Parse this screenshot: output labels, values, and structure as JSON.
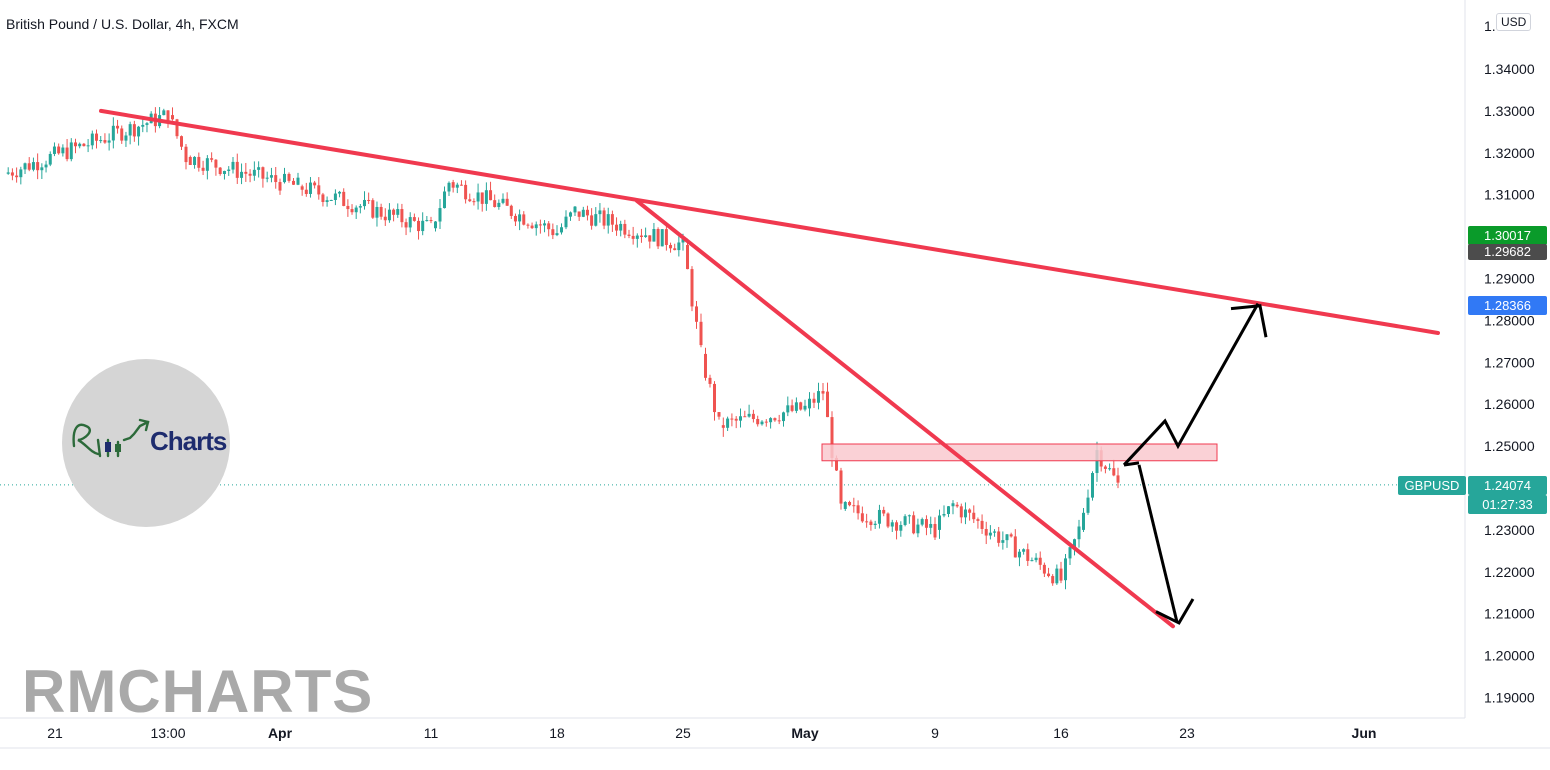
{
  "header": {
    "title": "British Pound / U.S. Dollar, 4h, FXCM",
    "currency_label": "USD"
  },
  "price_tags": {
    "green": "1.30017",
    "dark": "1.29682",
    "blue": "1.28366",
    "symbol": "GBPUSD",
    "last": "1.24074",
    "countdown": "01:27:33"
  },
  "logo": {
    "text": "Charts",
    "mark": "RM"
  },
  "watermark": "RMCHARTS",
  "colors": {
    "trendline": "#f0394f",
    "zone_fill": "#f9c9cf",
    "zone_stroke": "#f0394f",
    "arrow": "#000000",
    "bull": "#26a69a",
    "bear": "#ef5350",
    "last_price_line": "#26a69a"
  },
  "chart_data": {
    "type": "candlestick",
    "title": "British Pound / U.S. Dollar, 4h, FXCM",
    "symbol": "GBPUSD",
    "timeframe": "4h",
    "y_ticks": [
      "1.34000",
      "1.33000",
      "1.32000",
      "1.31000",
      "1.29000",
      "1.28000",
      "1.27000",
      "1.26000",
      "1.25000",
      "1.23000",
      "1.22000",
      "1.21000",
      "1.20000",
      "1.19000"
    ],
    "x_ticks": [
      "21",
      "13:00",
      "Apr",
      "11",
      "18",
      "25",
      "May",
      "9",
      "16",
      "23",
      "Jun"
    ],
    "ylim": [
      1.185,
      1.355
    ],
    "last_price": 1.24074,
    "price_path": [
      {
        "t": "21",
        "p": 1.315
      },
      {
        "t": "13:00",
        "p": 1.329
      },
      {
        "t": "13:00+",
        "p": 1.319
      },
      {
        "t": "Apr",
        "p": 1.313
      },
      {
        "t": "Apr+",
        "p": 1.312
      },
      {
        "t": "11",
        "p": 1.302
      },
      {
        "t": "11+",
        "p": 1.313
      },
      {
        "t": "18",
        "p": 1.301
      },
      {
        "t": "18+",
        "p": 1.306
      },
      {
        "t": "25",
        "p": 1.298
      },
      {
        "t": "25+",
        "p": 1.272
      },
      {
        "t": "25++",
        "p": 1.255
      },
      {
        "t": "May",
        "p": 1.259
      },
      {
        "t": "May+",
        "p": 1.263
      },
      {
        "t": "May++",
        "p": 1.235
      },
      {
        "t": "9",
        "p": 1.23
      },
      {
        "t": "9+",
        "p": 1.236
      },
      {
        "t": "16",
        "p": 1.218
      },
      {
        "t": "16+",
        "p": 1.23
      },
      {
        "t": "16++",
        "p": 1.249
      },
      {
        "t": "last",
        "p": 1.2407
      }
    ],
    "drawings": {
      "resistance_trendline": {
        "start": {
          "t": "13:00",
          "p": 1.33
        },
        "end": {
          "t": "Jun-",
          "p": 1.277
        }
      },
      "descending_trendline": {
        "start": {
          "t": "25-",
          "p": 1.3085
        },
        "end": {
          "t": "23-",
          "p": 1.207
        }
      },
      "supply_zone": {
        "from_t": "May",
        "to_t": "23+",
        "price_low": 1.2465,
        "price_high": 1.2505
      },
      "scenario_up": [
        1.2455,
        1.256,
        1.25,
        1.284
      ],
      "scenario_down": [
        1.2455,
        1.208
      ]
    },
    "grid": false,
    "legend": "none"
  }
}
